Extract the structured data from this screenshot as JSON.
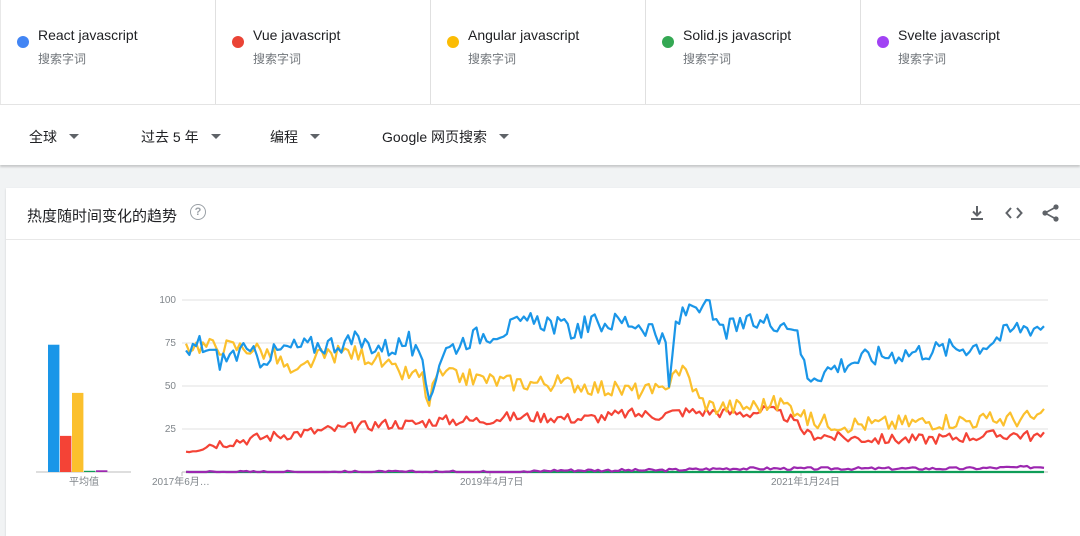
{
  "terms": [
    {
      "name": "React javascript",
      "sub": "搜索字词",
      "color": "#4285f4"
    },
    {
      "name": "Vue javascript",
      "sub": "搜索字词",
      "color": "#ea4335"
    },
    {
      "name": "Angular javascript",
      "sub": "搜索字词",
      "color": "#fbbc04"
    },
    {
      "name": "Solid.js javascript",
      "sub": "搜索字词",
      "color": "#34a853"
    },
    {
      "name": "Svelte javascript",
      "sub": "搜索字词",
      "color": "#a142f4"
    }
  ],
  "filters": {
    "region": "全球",
    "time": "过去 5 年",
    "category": "编程",
    "property": "Google 网页搜索"
  },
  "card": {
    "title": "热度随时间变化的趋势",
    "help_icon": "help-icon",
    "tools": [
      "download-icon",
      "embed-code-icon",
      "share-icon"
    ]
  },
  "chart_data": {
    "type": "line",
    "y_ticks": [
      "100",
      "75",
      "50",
      "25"
    ],
    "ylim": [
      0,
      100
    ],
    "x_ticks": [
      "2017年6月…",
      "2019年4月7日",
      "2021年1月24日"
    ],
    "averages_label": "平均值",
    "averages": [
      {
        "name": "React javascript",
        "value": 74
      },
      {
        "name": "Vue javascript",
        "value": 21
      },
      {
        "name": "Angular javascript",
        "value": 46
      },
      {
        "name": "Solid.js javascript",
        "value": 0
      },
      {
        "name": "Svelte javascript",
        "value": 1
      }
    ],
    "series_colors": [
      "#1a96e8",
      "#f44336",
      "#fbc02d",
      "#0f9d58",
      "#9c27b0"
    ],
    "series": [
      {
        "name": "React javascript",
        "color": "#1a96e8",
        "keypoints": [
          [
            0,
            68
          ],
          [
            4,
            75
          ],
          [
            10,
            65
          ],
          [
            16,
            70
          ],
          [
            22,
            66
          ],
          [
            30,
            72
          ],
          [
            40,
            74
          ],
          [
            50,
            76
          ],
          [
            60,
            72
          ],
          [
            66,
            76
          ],
          [
            70,
            60
          ],
          [
            72,
            44
          ],
          [
            76,
            70
          ],
          [
            84,
            78
          ],
          [
            92,
            82
          ],
          [
            100,
            86
          ],
          [
            106,
            88
          ],
          [
            114,
            82
          ],
          [
            120,
            86
          ],
          [
            130,
            88
          ],
          [
            138,
            84
          ],
          [
            142,
            72
          ],
          [
            143,
            48
          ],
          [
            145,
            86
          ],
          [
            150,
            98
          ],
          [
            154,
            98
          ],
          [
            158,
            82
          ],
          [
            166,
            86
          ],
          [
            174,
            88
          ],
          [
            180,
            86
          ],
          [
            182,
            70
          ],
          [
            184,
            56
          ],
          [
            188,
            58
          ],
          [
            196,
            64
          ],
          [
            206,
            68
          ],
          [
            216,
            70
          ],
          [
            226,
            72
          ],
          [
            236,
            74
          ],
          [
            246,
            84
          ],
          [
            254,
            85
          ]
        ]
      },
      {
        "name": "Vue javascript",
        "color": "#f44336",
        "keypoints": [
          [
            0,
            13
          ],
          [
            6,
            16
          ],
          [
            14,
            18
          ],
          [
            22,
            20
          ],
          [
            30,
            22
          ],
          [
            40,
            24
          ],
          [
            50,
            26
          ],
          [
            58,
            28
          ],
          [
            66,
            28
          ],
          [
            76,
            30
          ],
          [
            86,
            30
          ],
          [
            96,
            32
          ],
          [
            106,
            32
          ],
          [
            116,
            31
          ],
          [
            124,
            32
          ],
          [
            130,
            34
          ],
          [
            140,
            33
          ],
          [
            146,
            35
          ],
          [
            156,
            35
          ],
          [
            166,
            34
          ],
          [
            172,
            36
          ],
          [
            178,
            32
          ],
          [
            184,
            22
          ],
          [
            194,
            20
          ],
          [
            206,
            19
          ],
          [
            216,
            19
          ],
          [
            226,
            20
          ],
          [
            236,
            21
          ],
          [
            246,
            22
          ],
          [
            254,
            20
          ]
        ]
      },
      {
        "name": "Angular javascript",
        "color": "#fbc02d",
        "keypoints": [
          [
            0,
            74
          ],
          [
            10,
            73
          ],
          [
            20,
            72
          ],
          [
            26,
            68
          ],
          [
            30,
            60
          ],
          [
            32,
            55
          ],
          [
            38,
            66
          ],
          [
            48,
            70
          ],
          [
            56,
            66
          ],
          [
            62,
            58
          ],
          [
            70,
            55
          ],
          [
            72,
            38
          ],
          [
            74,
            56
          ],
          [
            84,
            55
          ],
          [
            96,
            52
          ],
          [
            106,
            52
          ],
          [
            116,
            51
          ],
          [
            126,
            48
          ],
          [
            136,
            47
          ],
          [
            142,
            46
          ],
          [
            144,
            60
          ],
          [
            148,
            58
          ],
          [
            152,
            42
          ],
          [
            156,
            38
          ],
          [
            166,
            38
          ],
          [
            176,
            40
          ],
          [
            182,
            36
          ],
          [
            184,
            30
          ],
          [
            196,
            28
          ],
          [
            206,
            28
          ],
          [
            216,
            29
          ],
          [
            226,
            30
          ],
          [
            236,
            30
          ],
          [
            246,
            31
          ],
          [
            254,
            32
          ]
        ]
      },
      {
        "name": "Solid.js javascript",
        "color": "#0f9d58",
        "keypoints": [
          [
            0,
            0
          ],
          [
            254,
            0
          ]
        ]
      },
      {
        "name": "Svelte javascript",
        "color": "#9c27b0",
        "keypoints": [
          [
            0,
            0
          ],
          [
            100,
            0
          ],
          [
            110,
            1
          ],
          [
            140,
            1
          ],
          [
            160,
            2
          ],
          [
            200,
            2
          ],
          [
            230,
            2
          ],
          [
            254,
            3
          ]
        ]
      }
    ]
  }
}
